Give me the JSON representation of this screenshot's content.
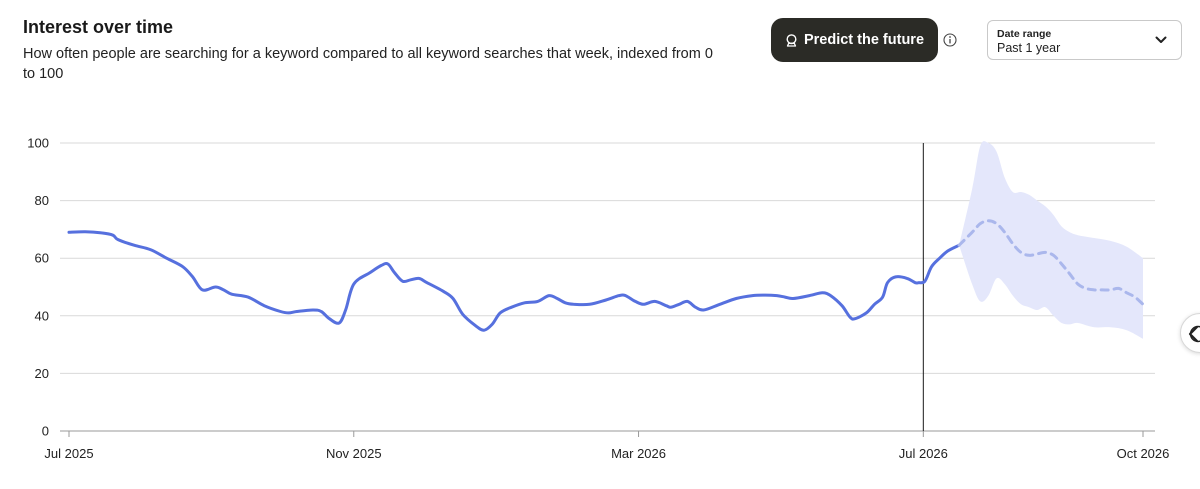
{
  "header": {
    "title": "Interest over time",
    "subtitle": "How often people are searching for a keyword compared to all keyword searches that week, indexed from 0 to 100"
  },
  "predict_button": {
    "label": "Predict the future",
    "icon": "crystal-ball-icon"
  },
  "info_icon": "info-icon",
  "date_range": {
    "label": "Date range",
    "value": "Past 1 year"
  },
  "colors": {
    "line": "#5670de",
    "forecast_line": "#aab7ec",
    "forecast_band": "#e4e7fb",
    "grid": "#d9d9d9",
    "divider": "#1a1a1a",
    "button_bg": "#2b2b26"
  },
  "chart_data": {
    "type": "line",
    "ylim": [
      0,
      100
    ],
    "yticks": [
      "0",
      "20",
      "40",
      "60",
      "80",
      "100"
    ],
    "xticks": [
      {
        "label": "Jul 2025",
        "x": 0
      },
      {
        "label": "Nov 2025",
        "x": 17.5
      },
      {
        "label": "Mar 2026",
        "x": 35
      },
      {
        "label": "Jul 2026",
        "x": 52.5
      },
      {
        "label": "Oct 2026",
        "x": 66
      }
    ],
    "xlim": [
      0,
      66
    ],
    "today_x": 52.5,
    "grid": true,
    "series": [
      {
        "kind": "actual",
        "points": [
          [
            0,
            69
          ],
          [
            1,
            69.2
          ],
          [
            2,
            68.8
          ],
          [
            2.7,
            68
          ],
          [
            3,
            66.5
          ],
          [
            4,
            64.5
          ],
          [
            5,
            63
          ],
          [
            6,
            60
          ],
          [
            7,
            57
          ],
          [
            7.6,
            53.5
          ],
          [
            8.2,
            49
          ],
          [
            9,
            50
          ],
          [
            9.5,
            49
          ],
          [
            10,
            47.5
          ],
          [
            11,
            46.5
          ],
          [
            12,
            43.5
          ],
          [
            13,
            41.5
          ],
          [
            13.5,
            41
          ],
          [
            14,
            41.5
          ],
          [
            15,
            42
          ],
          [
            15.5,
            41.5
          ],
          [
            16,
            39
          ],
          [
            16.6,
            37.5
          ],
          [
            17,
            42
          ],
          [
            17.5,
            51
          ],
          [
            18.5,
            55
          ],
          [
            19.2,
            57.5
          ],
          [
            19.6,
            58
          ],
          [
            20,
            55
          ],
          [
            20.5,
            52
          ],
          [
            21,
            52.5
          ],
          [
            21.5,
            53
          ],
          [
            22,
            51.5
          ],
          [
            23,
            48.5
          ],
          [
            23.6,
            46
          ],
          [
            24.2,
            40.5
          ],
          [
            25,
            36.5
          ],
          [
            25.5,
            35
          ],
          [
            26,
            37
          ],
          [
            26.5,
            41
          ],
          [
            27.2,
            43
          ],
          [
            28,
            44.5
          ],
          [
            28.8,
            45
          ],
          [
            29.5,
            47
          ],
          [
            30,
            46
          ],
          [
            30.5,
            44.5
          ],
          [
            31,
            44
          ],
          [
            32,
            44
          ],
          [
            33,
            45.5
          ],
          [
            33.8,
            47
          ],
          [
            34.2,
            47
          ],
          [
            34.8,
            45
          ],
          [
            35.3,
            44
          ],
          [
            36,
            45
          ],
          [
            36.7,
            43.5
          ],
          [
            37,
            43
          ],
          [
            37.5,
            44
          ],
          [
            38,
            45
          ],
          [
            38.5,
            43
          ],
          [
            39,
            42
          ],
          [
            40,
            44
          ],
          [
            41,
            46
          ],
          [
            42,
            47
          ],
          [
            42.8,
            47.2
          ],
          [
            43.5,
            47
          ],
          [
            44,
            46.5
          ],
          [
            44.5,
            46
          ],
          [
            45.5,
            47
          ],
          [
            46.3,
            48
          ],
          [
            46.8,
            47
          ],
          [
            47.5,
            43.5
          ],
          [
            48,
            39.5
          ],
          [
            48.3,
            39
          ],
          [
            49,
            41
          ],
          [
            49.5,
            44
          ],
          [
            50,
            46.5
          ],
          [
            50.3,
            51.5
          ],
          [
            50.8,
            53.5
          ],
          [
            51.5,
            53
          ],
          [
            52,
            51.5
          ],
          [
            52.2,
            51.5
          ],
          [
            52.6,
            52
          ],
          [
            53,
            57
          ],
          [
            53.5,
            60
          ],
          [
            54,
            62.5
          ],
          [
            54.7,
            64.5
          ]
        ]
      },
      {
        "kind": "forecast",
        "points": [
          [
            54.7,
            64.5
          ],
          [
            55.5,
            69
          ],
          [
            56,
            72
          ],
          [
            56.5,
            73
          ],
          [
            57,
            72
          ],
          [
            57.5,
            69
          ],
          [
            58,
            65
          ],
          [
            58.5,
            62
          ],
          [
            59,
            61
          ],
          [
            59.5,
            61.5
          ],
          [
            60,
            62
          ],
          [
            60.5,
            61
          ],
          [
            61,
            58
          ],
          [
            61.5,
            54.5
          ],
          [
            62,
            51
          ],
          [
            62.5,
            49.5
          ],
          [
            63,
            49
          ],
          [
            63.5,
            49
          ],
          [
            64,
            49
          ],
          [
            64.5,
            49.5
          ],
          [
            65,
            48
          ],
          [
            65.5,
            46.5
          ],
          [
            66,
            44
          ]
        ]
      }
    ],
    "forecast_band": {
      "upper": [
        [
          54.7,
          64.5
        ],
        [
          55.5,
          84
        ],
        [
          56,
          99
        ],
        [
          56.5,
          100
        ],
        [
          57,
          97
        ],
        [
          57.5,
          88
        ],
        [
          58,
          83
        ],
        [
          58.5,
          83
        ],
        [
          59,
          82
        ],
        [
          59.5,
          80
        ],
        [
          60,
          78
        ],
        [
          60.5,
          75
        ],
        [
          61,
          71
        ],
        [
          61.5,
          69
        ],
        [
          62,
          68
        ],
        [
          63,
          67
        ],
        [
          64,
          66
        ],
        [
          65,
          64
        ],
        [
          66,
          60
        ]
      ],
      "lower": [
        [
          54.7,
          64.5
        ],
        [
          55.5,
          51
        ],
        [
          56,
          45
        ],
        [
          56.5,
          47
        ],
        [
          57,
          53
        ],
        [
          57.5,
          51
        ],
        [
          58,
          47
        ],
        [
          58.5,
          44
        ],
        [
          59,
          43
        ],
        [
          59.5,
          42
        ],
        [
          60,
          43
        ],
        [
          60.5,
          40
        ],
        [
          61,
          37.5
        ],
        [
          61.5,
          37
        ],
        [
          62,
          37.5
        ],
        [
          63,
          36
        ],
        [
          64,
          36
        ],
        [
          65,
          35
        ],
        [
          66,
          32
        ]
      ]
    }
  }
}
